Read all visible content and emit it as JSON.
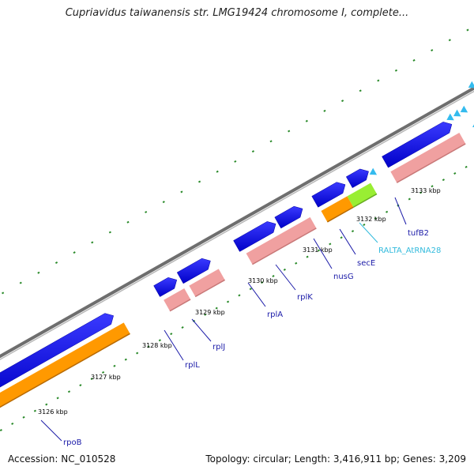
{
  "title": "Cupriavidus taiwanensis str. LMG19424 chromosome I, complete...",
  "accession_label": "Accession: NC_010528",
  "summary_label": "Topology: circular; Length: 3,416,911 bp; Genes: 3,209",
  "kbp_ticks": [
    "3126 kbp",
    "3127 kbp",
    "3128 kbp",
    "3129 kbp",
    "3130 kbp",
    "3131 kbp",
    "3132 kbp",
    "3133 kbp"
  ],
  "genes": [
    "rpoB",
    "rplL",
    "rplJ",
    "rplA",
    "rplK",
    "nusG",
    "secE",
    "RALTA_AtRNA28",
    "tufB2"
  ],
  "colors": {
    "cds": "#0a0ae6",
    "gene": "#f0a0a0",
    "rpoB_orange": "#ff9900",
    "trna_green": "#99ee33",
    "trna_arrow": "#33bbee",
    "backbone": "#888888",
    "tick": "#2a8a2a",
    "gene_label": "#1a1aa8",
    "rna_label": "#33bbdd"
  }
}
